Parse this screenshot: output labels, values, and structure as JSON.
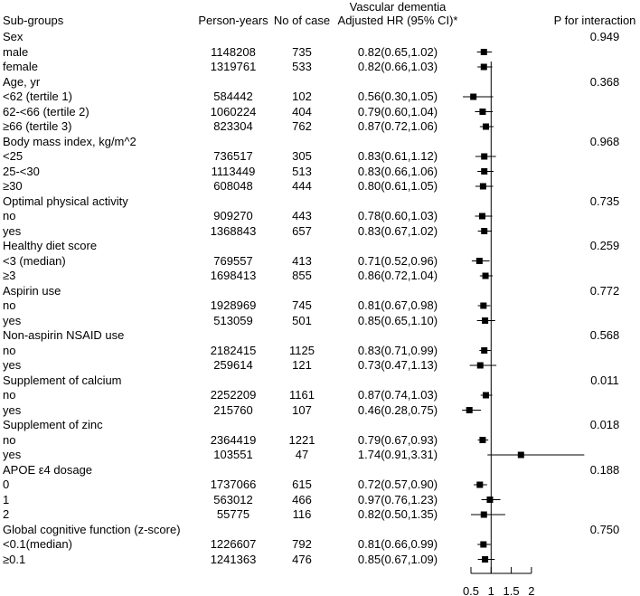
{
  "header": {
    "subgroups": "Sub-groups",
    "person_years": "Person-years",
    "cases": "No of case",
    "outcome": "Vascular dementia",
    "hr": "Adjusted HR (95% CI)*",
    "p": "P for interaction"
  },
  "chart_data": {
    "type": "forest",
    "xlim": [
      0.5,
      2
    ],
    "ticks": [
      "0.5",
      "1",
      "1.5",
      "2"
    ],
    "tick_values": [
      0.5,
      1,
      1.5,
      2
    ],
    "reference_line": 1,
    "rows": [
      {
        "label": "Sex",
        "p": "0.949"
      },
      {
        "label": "male",
        "py": "1148208",
        "n": "735",
        "hr_text": "0.82(0.65,1.02)",
        "hr": 0.82,
        "lo": 0.65,
        "hi": 1.02
      },
      {
        "label": "female",
        "py": "1319761",
        "n": "533",
        "hr_text": "0.82(0.66,1.03)",
        "hr": 0.82,
        "lo": 0.66,
        "hi": 1.03
      },
      {
        "label": "Age, yr",
        "p": "0.368"
      },
      {
        "label": "<62 (tertile 1)",
        "py": "584442",
        "n": "102",
        "hr_text": "0.56(0.30,1.05)",
        "hr": 0.56,
        "lo": 0.3,
        "hi": 1.05
      },
      {
        "label": "62-<66 (tertile 2)",
        "py": "1060224",
        "n": "404",
        "hr_text": "0.79(0.60,1.04)",
        "hr": 0.79,
        "lo": 0.6,
        "hi": 1.04
      },
      {
        "label": "≥66 (tertile 3)",
        "py": "823304",
        "n": "762",
        "hr_text": "0.87(0.72,1.06)",
        "hr": 0.87,
        "lo": 0.72,
        "hi": 1.06
      },
      {
        "label": "Body mass index, kg/m^2",
        "p": "0.968"
      },
      {
        "label": "<25",
        "py": "736517",
        "n": "305",
        "hr_text": "0.83(0.61,1.12)",
        "hr": 0.83,
        "lo": 0.61,
        "hi": 1.12
      },
      {
        "label": "25-<30",
        "py": "1113449",
        "n": "513",
        "hr_text": "0.83(0.66,1.06)",
        "hr": 0.83,
        "lo": 0.66,
        "hi": 1.06
      },
      {
        "label": "≥30",
        "py": "608048",
        "n": "444",
        "hr_text": "0.80(0.61,1.05)",
        "hr": 0.8,
        "lo": 0.61,
        "hi": 1.05
      },
      {
        "label": "Optimal physical activity",
        "p": "0.735"
      },
      {
        "label": "no",
        "py": "909270",
        "n": "443",
        "hr_text": "0.78(0.60,1.03)",
        "hr": 0.78,
        "lo": 0.6,
        "hi": 1.03
      },
      {
        "label": "yes",
        "py": "1368843",
        "n": "657",
        "hr_text": "0.83(0.67,1.02)",
        "hr": 0.83,
        "lo": 0.67,
        "hi": 1.02
      },
      {
        "label": "Healthy diet score",
        "p": "0.259"
      },
      {
        "label": "<3 (median)",
        "py": "769557",
        "n": "413",
        "hr_text": "0.71(0.52,0.96)",
        "hr": 0.71,
        "lo": 0.52,
        "hi": 0.96
      },
      {
        "label": "≥3",
        "py": "1698413",
        "n": "855",
        "hr_text": "0.86(0.72,1.04)",
        "hr": 0.86,
        "lo": 0.72,
        "hi": 1.04
      },
      {
        "label": "Aspirin use",
        "p": "0.772"
      },
      {
        "label": "no",
        "py": "1928969",
        "n": "745",
        "hr_text": "0.81(0.67,0.98)",
        "hr": 0.81,
        "lo": 0.67,
        "hi": 0.98
      },
      {
        "label": "yes",
        "py": "513059",
        "n": "501",
        "hr_text": "0.85(0.65,1.10)",
        "hr": 0.85,
        "lo": 0.65,
        "hi": 1.1
      },
      {
        "label": "Non-aspirin NSAID use",
        "p": "0.568"
      },
      {
        "label": "no",
        "py": "2182415",
        "n": "1125",
        "hr_text": "0.83(0.71,0.99)",
        "hr": 0.83,
        "lo": 0.71,
        "hi": 0.99
      },
      {
        "label": "yes",
        "py": "259614",
        "n": "121",
        "hr_text": "0.73(0.47,1.13)",
        "hr": 0.73,
        "lo": 0.47,
        "hi": 1.13
      },
      {
        "label": "Supplement of calcium",
        "p": "0.011"
      },
      {
        "label": "no",
        "py": "2252209",
        "n": "1161",
        "hr_text": "0.87(0.74,1.03)",
        "hr": 0.87,
        "lo": 0.74,
        "hi": 1.03
      },
      {
        "label": "yes",
        "py": "215760",
        "n": "107",
        "hr_text": "0.46(0.28,0.75)",
        "hr": 0.46,
        "lo": 0.28,
        "hi": 0.75
      },
      {
        "label": "Supplement of zinc",
        "p": "0.018"
      },
      {
        "label": "no",
        "py": "2364419",
        "n": "1221",
        "hr_text": "0.79(0.67,0.93)",
        "hr": 0.79,
        "lo": 0.67,
        "hi": 0.93
      },
      {
        "label": "yes",
        "py": "103551",
        "n": "47",
        "hr_text": "1.74(0.91,3.31)",
        "hr": 1.74,
        "lo": 0.91,
        "hi": 3.31
      },
      {
        "label": "APOE ε4 dosage",
        "p": "0.188"
      },
      {
        "label": "0",
        "py": "1737066",
        "n": "615",
        "hr_text": "0.72(0.57,0.90)",
        "hr": 0.72,
        "lo": 0.57,
        "hi": 0.9
      },
      {
        "label": "1",
        "py": "563012",
        "n": "466",
        "hr_text": "0.97(0.76,1.23)",
        "hr": 0.97,
        "lo": 0.76,
        "hi": 1.23
      },
      {
        "label": "2",
        "py": "55775",
        "n": "116",
        "hr_text": "0.82(0.50,1.35)",
        "hr": 0.82,
        "lo": 0.5,
        "hi": 1.35
      },
      {
        "label": "Global cognitive function (z-score)",
        "p": "0.750"
      },
      {
        "label": "<0.1(median)",
        "py": "1226607",
        "n": "792",
        "hr_text": "0.81(0.66,0.99)",
        "hr": 0.81,
        "lo": 0.66,
        "hi": 0.99
      },
      {
        "label": "≥0.1",
        "py": "1241363",
        "n": "476",
        "hr_text": "0.85(0.67,1.09)",
        "hr": 0.85,
        "lo": 0.67,
        "hi": 1.09
      }
    ]
  }
}
